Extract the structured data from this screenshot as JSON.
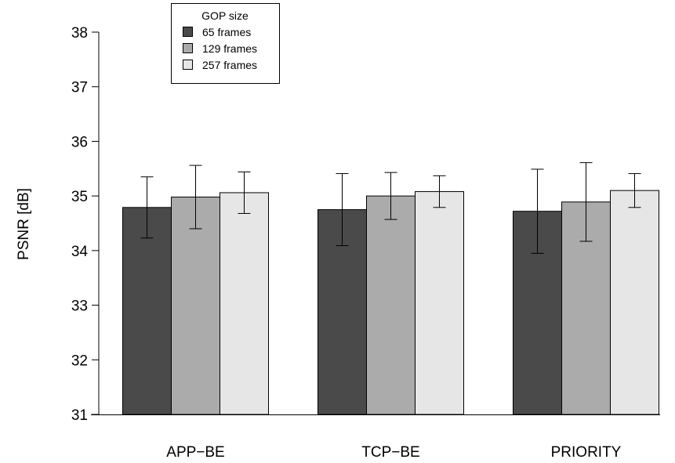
{
  "chart_data": {
    "type": "bar",
    "categories": [
      "APP−BE",
      "TCP−BE",
      "PRIORITY"
    ],
    "ylabel": "PSNR [dB]",
    "xlabel": "",
    "ylim": [
      31,
      38
    ],
    "yticks": [
      "31",
      "32",
      "33",
      "34",
      "35",
      "36",
      "37",
      "38"
    ],
    "grid": false,
    "legend": {
      "title": "GOP size",
      "placement": "top-left"
    },
    "series": [
      {
        "name": "65 frames",
        "color": "#4a4a4a",
        "values": [
          34.79,
          34.75,
          34.72
        ],
        "error_low": [
          34.23,
          34.09,
          33.95
        ],
        "error_high": [
          35.35,
          35.41,
          35.49
        ]
      },
      {
        "name": "129 frames",
        "color": "#ababab",
        "values": [
          34.98,
          35.0,
          34.89
        ],
        "error_low": [
          34.4,
          34.57,
          34.17
        ],
        "error_high": [
          35.56,
          35.43,
          35.61
        ]
      },
      {
        "name": "257 frames",
        "color": "#e6e6e6",
        "values": [
          35.06,
          35.08,
          35.1
        ],
        "error_low": [
          34.68,
          34.79,
          34.79
        ],
        "error_high": [
          35.44,
          35.37,
          35.41
        ]
      }
    ]
  }
}
